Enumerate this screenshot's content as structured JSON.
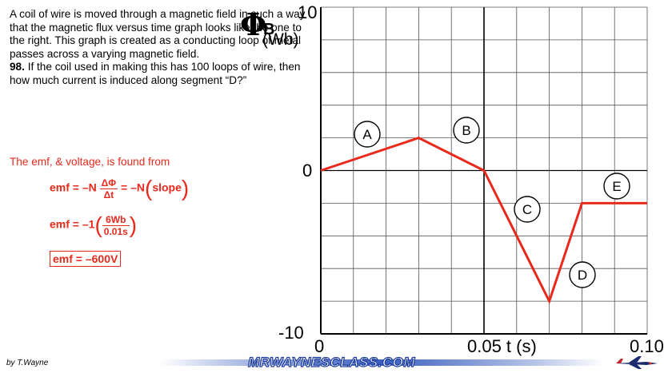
{
  "problem": {
    "intro": "A coil of wire is moved through a magnetic field in such a way that the magnetic flux versus time graph looks like the one to the right. This graph is created as a conducting loop of metal passes across a varying magnetic field.",
    "number": "98.",
    "question": "If the coil used in making this has 100 loops of wire, then how much current is induced along segment “D?”"
  },
  "solution": {
    "lead": "The emf, & voltage, is found from",
    "eq1_lhs": "emf = –N",
    "eq1_num": "ΔΦ",
    "eq1_den": "Δt",
    "eq1_mid": "= –N",
    "eq1_slope": "slope",
    "eq2_lhs": "emf = –1",
    "eq2_num": "6Wb",
    "eq2_den": "0.01s",
    "eq3": "emf = –600V"
  },
  "graph": {
    "y_symbol": "Φ",
    "y_sub": "B",
    "y_unit": "(Wb)",
    "y_top": "10",
    "y_zero": "0",
    "y_bottom": "-10",
    "x_zero": "0",
    "x_mid": "0.05 t (s)",
    "x_end": "0.10",
    "segment_labels": [
      "A",
      "B",
      "C",
      "D",
      "E"
    ],
    "line_color": "#e8291c"
  },
  "chart_data": {
    "type": "line",
    "x": [
      0,
      0.03,
      0.05,
      0.07,
      0.08,
      0.1
    ],
    "values": [
      0,
      2,
      0,
      -8,
      -2,
      -2
    ],
    "xlim": [
      0,
      0.1
    ],
    "ylim": [
      -10,
      10
    ],
    "grid": true,
    "annotations": [
      "A",
      "B",
      "C",
      "D",
      "E"
    ]
  },
  "footer": {
    "author": "by T.Wayne",
    "brand": "MRWAYNESCLASS.COM"
  }
}
